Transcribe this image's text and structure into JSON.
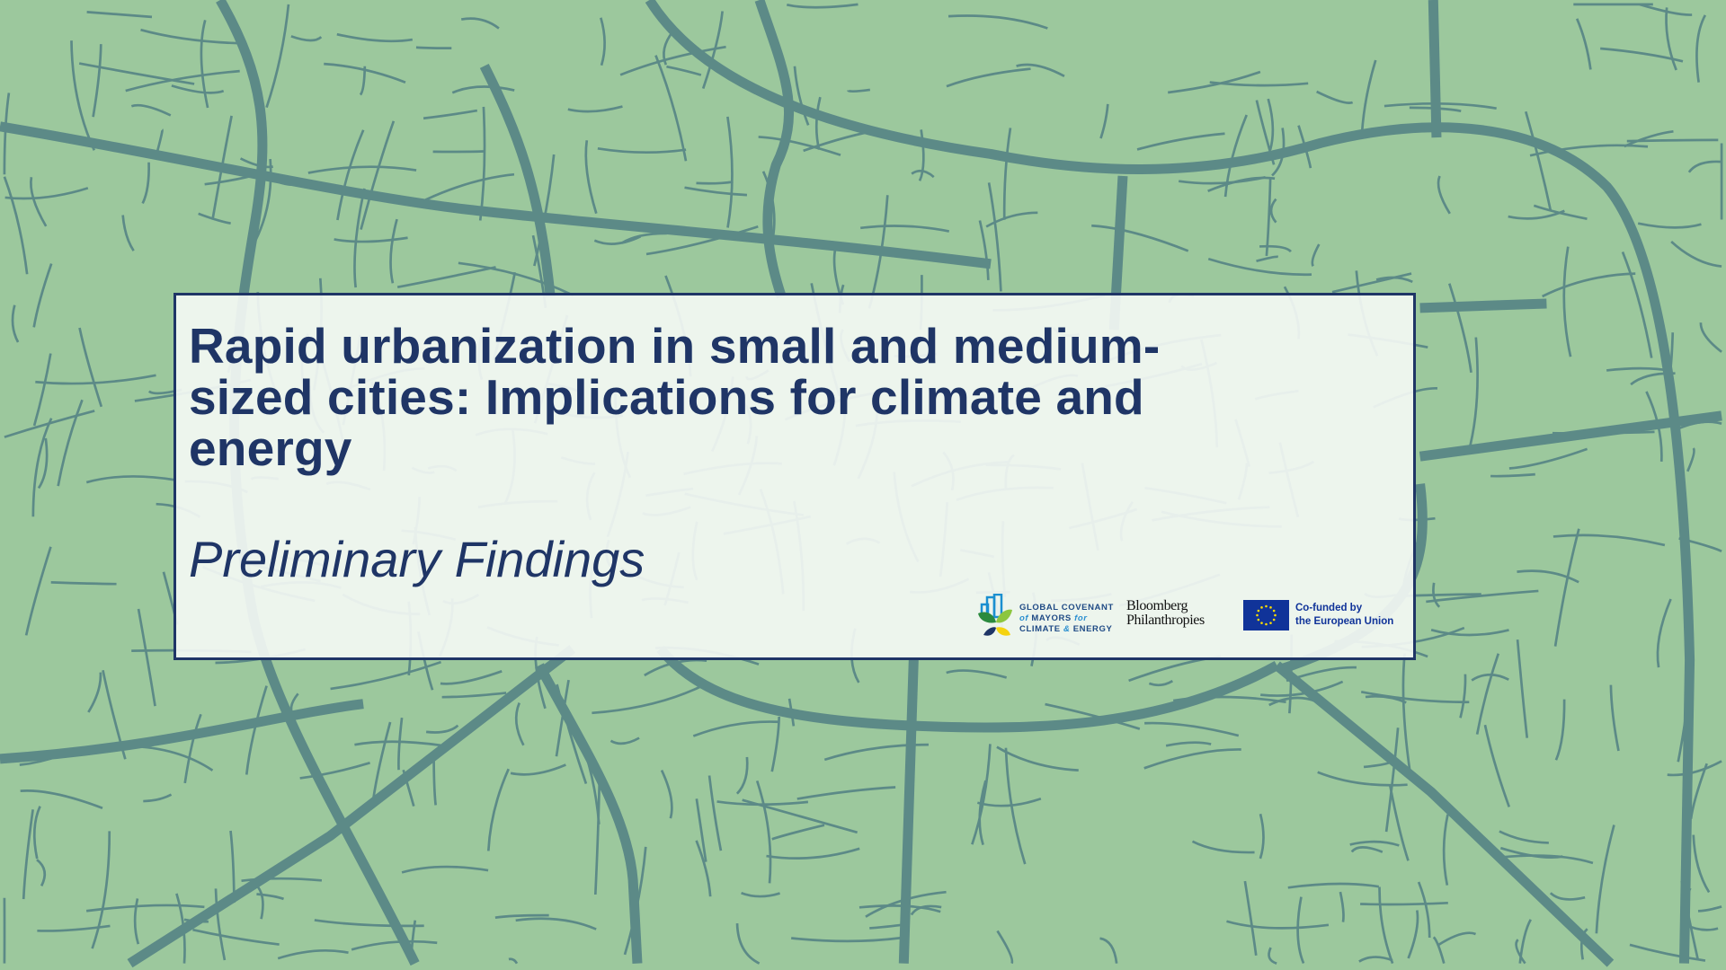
{
  "colors": {
    "background": "#9cc89d",
    "roads": "#5c8a87",
    "accent": "#1f3566",
    "eu_blue": "#103399",
    "eu_star": "#ffdd00"
  },
  "slide": {
    "title_lines": [
      "Rapid urbanization in small and medium-",
      "sized cities: Implications for climate and",
      "energy"
    ],
    "subtitle": "Preliminary Findings"
  },
  "logos": {
    "gcom": {
      "line1": "GLOBAL COVENANT",
      "line2_a": "of",
      "line2_b": "MAYORS",
      "line2_c": "for",
      "line3_a": "CLIMATE",
      "line3_b": "&",
      "line3_c": "ENERGY"
    },
    "bloomberg": {
      "line1": "Bloomberg",
      "line2": "Philanthropies"
    },
    "eu": {
      "line1": "Co-funded by",
      "line2": "the European Union"
    }
  }
}
